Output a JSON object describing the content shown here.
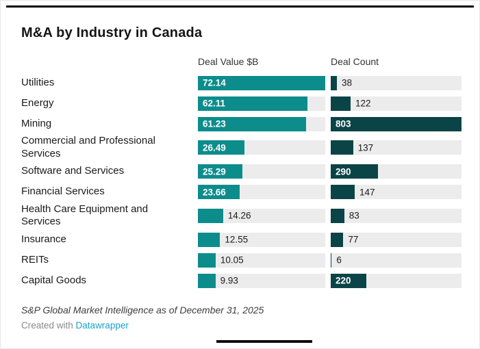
{
  "header": {
    "title": "M&A by Industry in Canada"
  },
  "columns": {
    "value_label": "Deal Value $B",
    "count_label": "Deal Count"
  },
  "chart_data": {
    "type": "bar",
    "orientation": "horizontal",
    "title": "M&A by Industry in Canada",
    "categories": [
      "Utilities",
      "Energy",
      "Mining",
      "Commercial and Professional Services",
      "Software and Services",
      "Financial Services",
      "Health Care Equipment and Services",
      "Insurance",
      "REITs",
      "Capital Goods"
    ],
    "series": [
      {
        "name": "Deal Value $B",
        "values": [
          72.14,
          62.11,
          61.23,
          26.49,
          25.29,
          23.66,
          14.26,
          12.55,
          10.05,
          9.93
        ],
        "max": 72.14
      },
      {
        "name": "Deal Count",
        "values": [
          38,
          122,
          803,
          137,
          290,
          147,
          83,
          77,
          6,
          220
        ],
        "max": 803
      }
    ],
    "layout": {
      "grid": "off",
      "legend": "none",
      "label_inside_min_pct": 25
    }
  },
  "colors": {
    "value_bar": "#0d8c8c",
    "count_bar": "#0b4447",
    "track": "#ececec",
    "link": "#18a1cd"
  },
  "footer": {
    "source": "S&P Global Market Intelligence as of December 31, 2025",
    "credit_prefix": "Created with ",
    "credit_link": "Datawrapper"
  }
}
